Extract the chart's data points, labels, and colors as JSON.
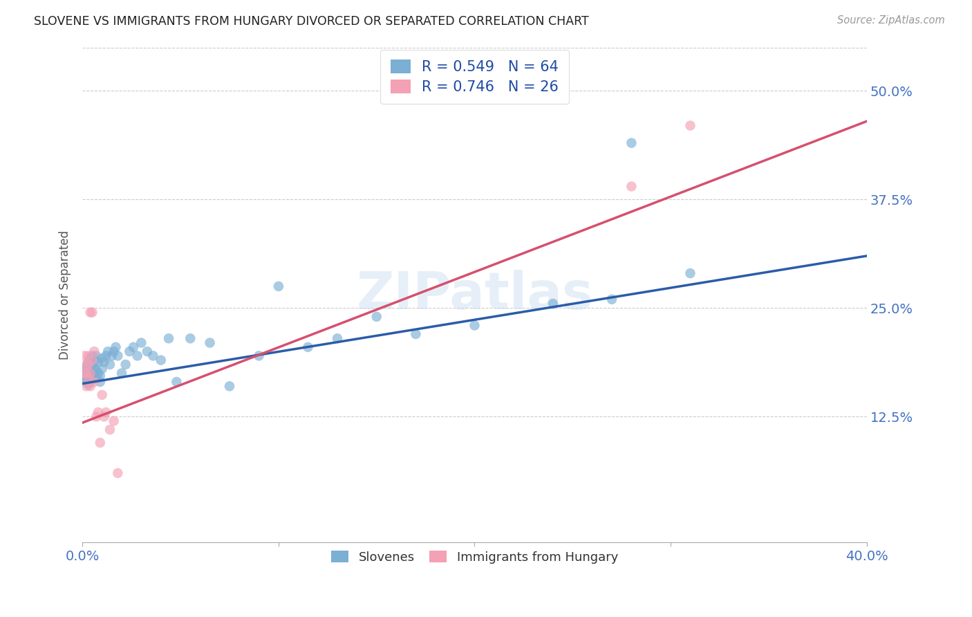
{
  "title": "SLOVENE VS IMMIGRANTS FROM HUNGARY DIVORCED OR SEPARATED CORRELATION CHART",
  "source": "Source: ZipAtlas.com",
  "xlabel_color": "#4472c4",
  "ylabel": "Divorced or Separated",
  "xlim": [
    0.0,
    0.4
  ],
  "ylim": [
    -0.02,
    0.55
  ],
  "xticks": [
    0.0,
    0.1,
    0.2,
    0.3,
    0.4
  ],
  "xtick_labels": [
    "0.0%",
    "",
    "",
    "",
    "40.0%"
  ],
  "yticks": [
    0.125,
    0.25,
    0.375,
    0.5
  ],
  "ytick_labels": [
    "12.5%",
    "25.0%",
    "37.5%",
    "50.0%"
  ],
  "blue_color": "#7bafd4",
  "blue_line_color": "#2b5ca8",
  "pink_color": "#f4a0b5",
  "pink_line_color": "#d64f6e",
  "watermark": "ZIPatlas",
  "legend_blue_label": "R = 0.549   N = 64",
  "legend_pink_label": "R = 0.746   N = 26",
  "legend_text_color": "#1f4ba5",
  "blue_scatter_x": [
    0.001,
    0.001,
    0.001,
    0.002,
    0.002,
    0.002,
    0.002,
    0.003,
    0.003,
    0.003,
    0.003,
    0.004,
    0.004,
    0.004,
    0.004,
    0.005,
    0.005,
    0.005,
    0.005,
    0.006,
    0.006,
    0.006,
    0.007,
    0.007,
    0.007,
    0.008,
    0.008,
    0.009,
    0.009,
    0.01,
    0.01,
    0.011,
    0.012,
    0.013,
    0.014,
    0.015,
    0.016,
    0.017,
    0.018,
    0.02,
    0.022,
    0.024,
    0.026,
    0.028,
    0.03,
    0.033,
    0.036,
    0.04,
    0.044,
    0.048,
    0.055,
    0.065,
    0.075,
    0.09,
    0.1,
    0.115,
    0.13,
    0.15,
    0.17,
    0.2,
    0.24,
    0.27,
    0.31,
    0.28
  ],
  "blue_scatter_y": [
    0.175,
    0.168,
    0.18,
    0.172,
    0.178,
    0.165,
    0.183,
    0.17,
    0.176,
    0.162,
    0.188,
    0.165,
    0.173,
    0.18,
    0.192,
    0.175,
    0.168,
    0.185,
    0.195,
    0.172,
    0.18,
    0.188,
    0.178,
    0.17,
    0.195,
    0.175,
    0.188,
    0.172,
    0.165,
    0.18,
    0.192,
    0.188,
    0.195,
    0.2,
    0.185,
    0.195,
    0.2,
    0.205,
    0.195,
    0.175,
    0.185,
    0.2,
    0.205,
    0.195,
    0.21,
    0.2,
    0.195,
    0.19,
    0.215,
    0.165,
    0.215,
    0.21,
    0.16,
    0.195,
    0.275,
    0.205,
    0.215,
    0.24,
    0.22,
    0.23,
    0.255,
    0.26,
    0.29,
    0.44
  ],
  "pink_scatter_x": [
    0.001,
    0.001,
    0.002,
    0.002,
    0.002,
    0.003,
    0.003,
    0.003,
    0.004,
    0.004,
    0.004,
    0.005,
    0.005,
    0.006,
    0.006,
    0.007,
    0.008,
    0.009,
    0.01,
    0.011,
    0.012,
    0.014,
    0.016,
    0.018,
    0.28,
    0.31
  ],
  "pink_scatter_y": [
    0.195,
    0.175,
    0.185,
    0.175,
    0.16,
    0.17,
    0.185,
    0.195,
    0.16,
    0.175,
    0.245,
    0.19,
    0.245,
    0.165,
    0.2,
    0.125,
    0.13,
    0.095,
    0.15,
    0.125,
    0.13,
    0.11,
    0.12,
    0.06,
    0.39,
    0.46
  ],
  "blue_line_x": [
    0.0,
    0.4
  ],
  "blue_line_y": [
    0.163,
    0.31
  ],
  "pink_line_x": [
    0.0,
    0.4
  ],
  "pink_line_y": [
    0.118,
    0.465
  ],
  "background_color": "#ffffff",
  "grid_color": "#cccccc"
}
